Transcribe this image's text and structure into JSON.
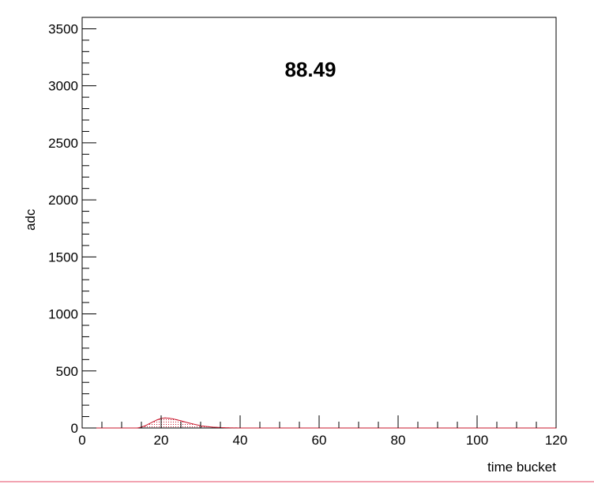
{
  "chart_data": {
    "type": "area",
    "title": "",
    "xlabel": "time bucket",
    "ylabel": "adc",
    "xlim": [
      0,
      120
    ],
    "ylim": [
      0,
      3600
    ],
    "x_major_ticks": [
      0,
      20,
      40,
      60,
      80,
      100,
      120
    ],
    "x_tick_labels": [
      "0",
      "20",
      "40",
      "60",
      "80",
      "100",
      "120"
    ],
    "y_major_ticks": [
      0,
      500,
      1000,
      1500,
      2000,
      2500,
      3000,
      3500
    ],
    "y_tick_labels": [
      "0",
      "500",
      "1000",
      "1500",
      "2000",
      "2500",
      "3000",
      "3500"
    ],
    "annotation": "88.49",
    "grid": false,
    "legend": "none",
    "series": [
      {
        "color": "#c8192e",
        "x": [
          0,
          14,
          15,
          16,
          17,
          18,
          19,
          20,
          21,
          22,
          23,
          24,
          25,
          26,
          27,
          28,
          29,
          30,
          31,
          32,
          33,
          34,
          35,
          36,
          37,
          38,
          39,
          40,
          120
        ],
        "values": [
          0,
          0,
          8,
          20,
          38,
          55,
          72,
          84,
          88,
          86,
          80,
          72,
          63,
          53,
          44,
          36,
          28,
          21,
          15,
          11,
          8,
          6,
          4,
          3,
          2,
          1,
          1,
          0,
          0
        ]
      }
    ]
  },
  "colors": {
    "axis": "#000000",
    "series_fill": "#c8192e",
    "footer_line": "#e64a64"
  }
}
